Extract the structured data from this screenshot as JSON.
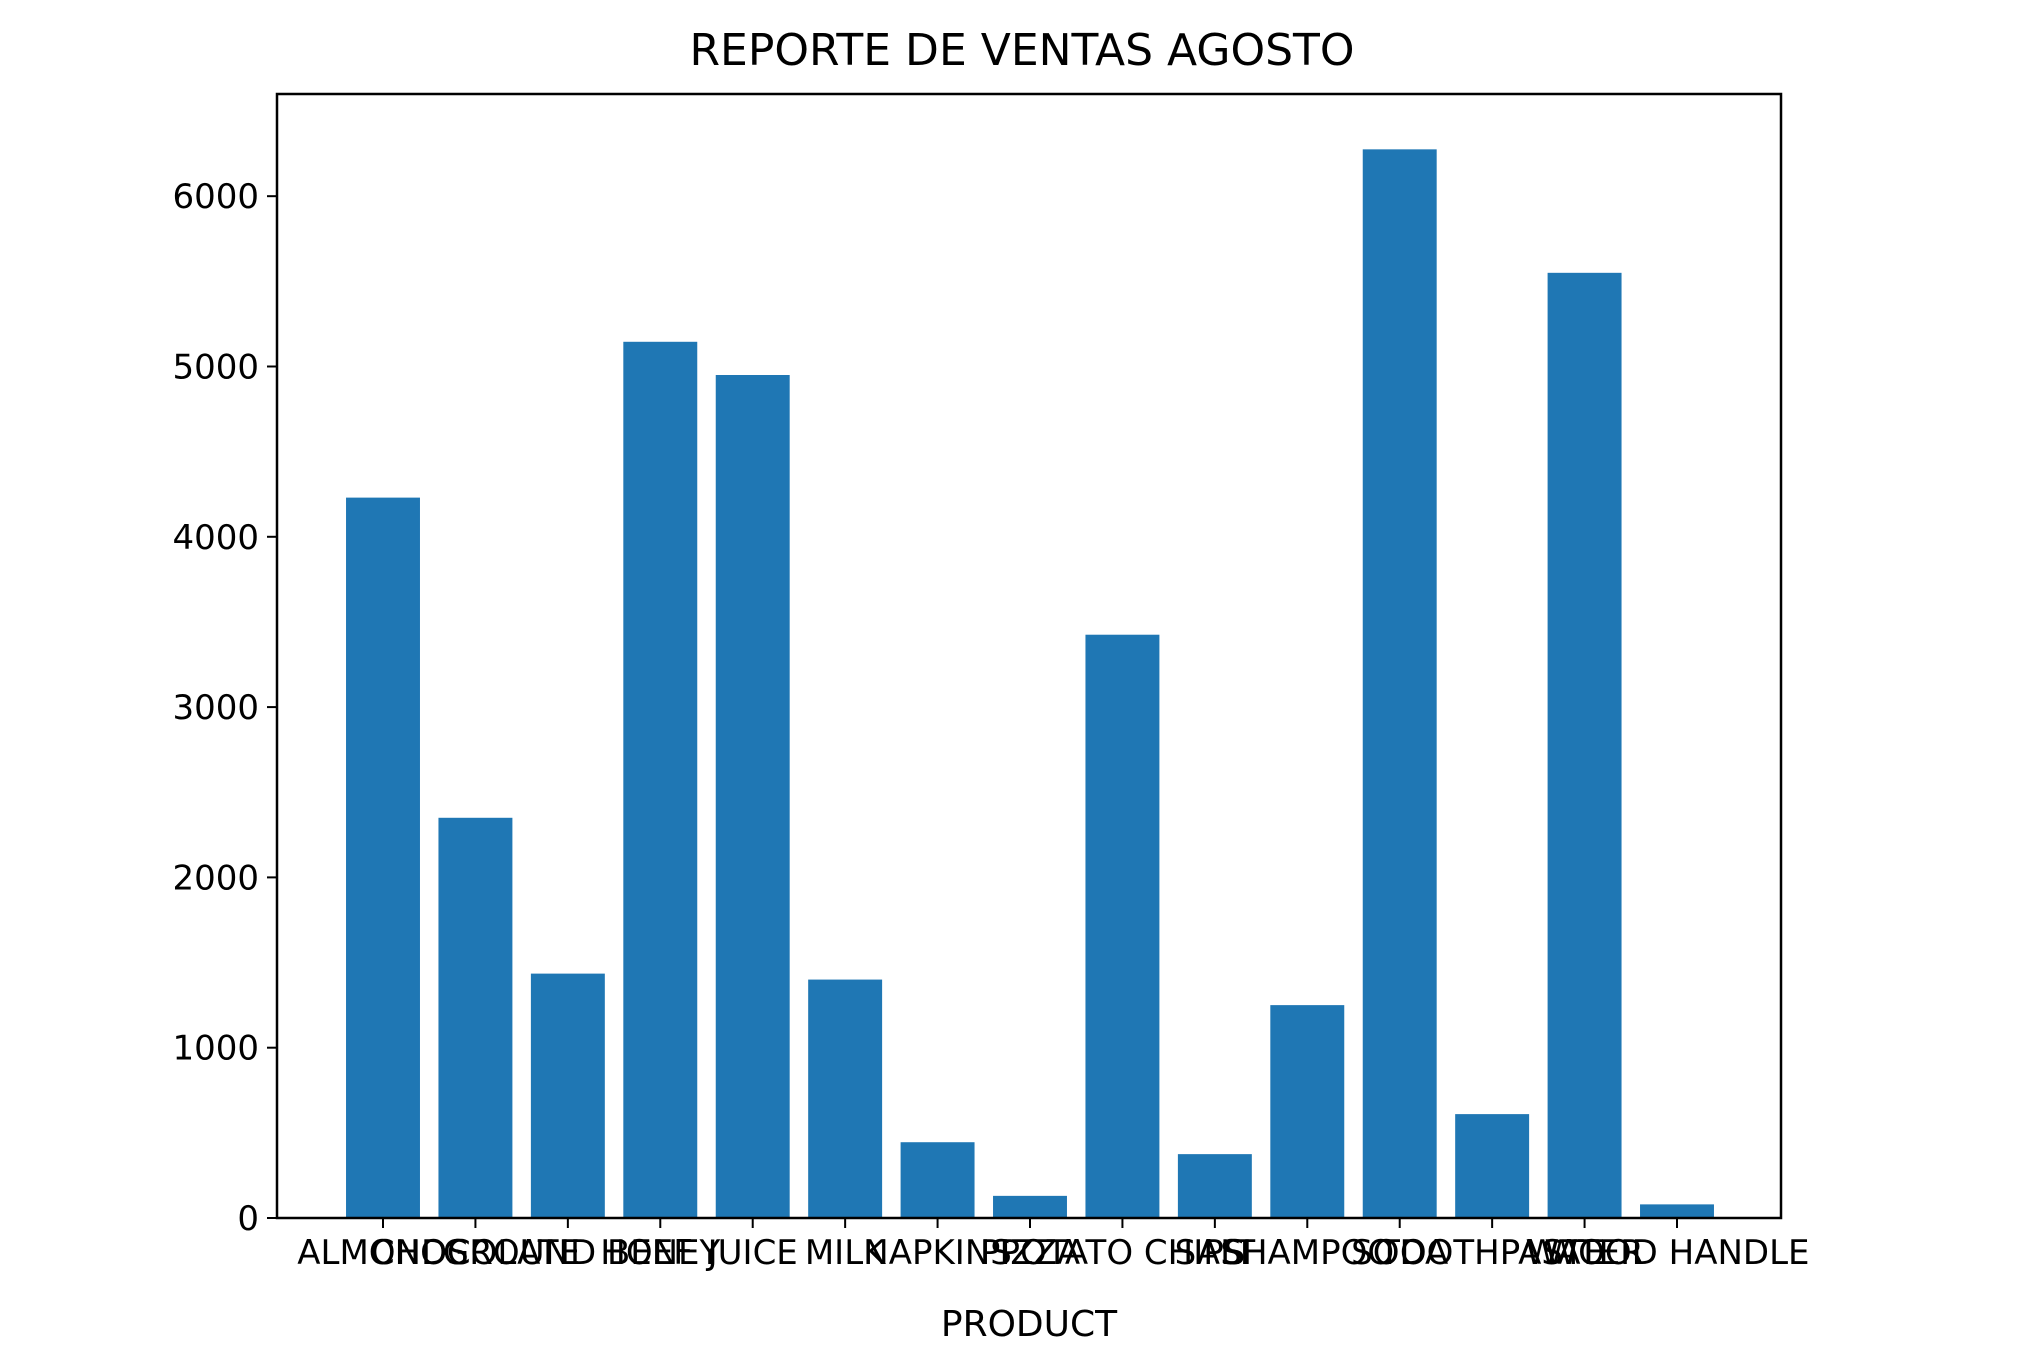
{
  "chart_data": {
    "type": "bar",
    "title": "REPORTE DE VENTAS AGOSTO",
    "xlabel": "PRODUCT",
    "ylabel": "",
    "ylim": [
      0,
      6600
    ],
    "yticks": [
      0,
      1000,
      2000,
      3000,
      4000,
      5000,
      6000
    ],
    "grid": false,
    "bar_color": "#1f77b4",
    "categories": [
      "ALMONDS",
      "CHOCOLATE",
      "GROUND BEEF",
      "HONEY",
      "JUICE",
      "MILK",
      "NAPKINS",
      "PIZZA",
      "POTATO CHIPS",
      "SALT",
      "SHAMPOO",
      "SODA",
      "TOOTHPASTE",
      "WATER",
      "WOOD HANDLE"
    ],
    "values": [
      4230,
      2350,
      1435,
      5145,
      4950,
      1400,
      445,
      130,
      3425,
      375,
      1250,
      6275,
      610,
      5550,
      80
    ]
  }
}
